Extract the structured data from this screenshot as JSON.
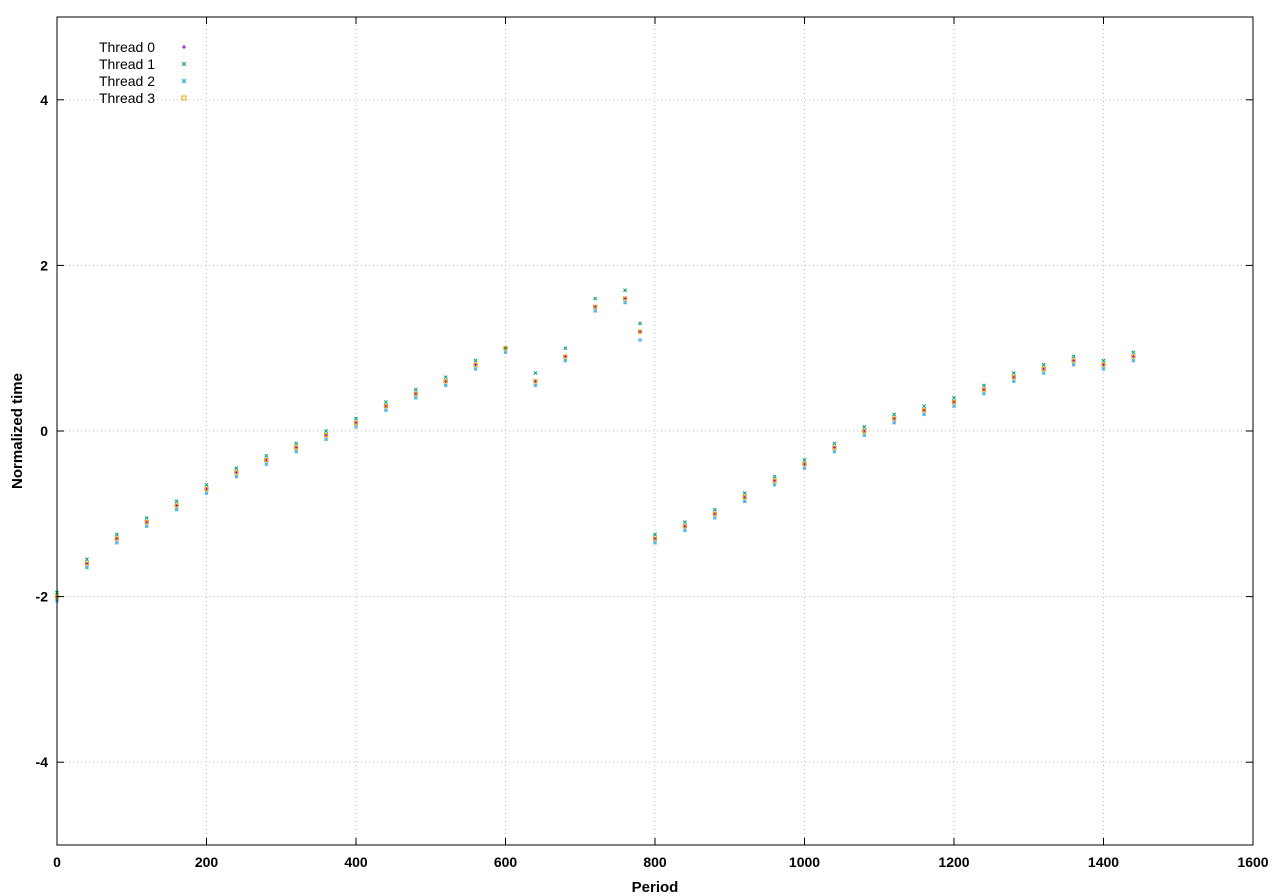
{
  "chart_data": {
    "type": "scatter",
    "title": "",
    "xlabel": "Period",
    "ylabel": "Normalized time",
    "xlim": [
      0,
      1600
    ],
    "ylim": [
      -5,
      5
    ],
    "xticks": [
      0,
      200,
      400,
      600,
      800,
      1000,
      1200,
      1400,
      1600
    ],
    "yticks": [
      -4,
      -2,
      0,
      2,
      4
    ],
    "xtick_labels": [
      "0",
      "200",
      "400",
      "600",
      "800",
      "1000",
      "1200",
      "1400",
      "1600"
    ],
    "ytick_labels": [
      "-4",
      "-2",
      "0",
      "2",
      "4"
    ],
    "grid": true,
    "legend_position": "top-left",
    "series": [
      {
        "name": "Thread 0",
        "color": "#9400d3",
        "marker": "plus",
        "x": [
          0,
          40,
          80,
          120,
          160,
          200,
          240,
          280,
          320,
          360,
          400,
          440,
          480,
          520,
          560,
          600,
          640,
          680,
          720,
          760,
          780,
          800,
          840,
          880,
          920,
          960,
          1000,
          1040,
          1080,
          1120,
          1160,
          1200,
          1240,
          1280,
          1320,
          1360,
          1400,
          1440
        ],
        "y": [
          -2.0,
          -1.6,
          -1.3,
          -1.1,
          -0.9,
          -0.7,
          -0.5,
          -0.35,
          -0.2,
          -0.05,
          0.1,
          0.3,
          0.45,
          0.6,
          0.8,
          1.0,
          0.6,
          0.9,
          1.5,
          1.6,
          1.2,
          -1.3,
          -1.15,
          -1.0,
          -0.8,
          -0.6,
          -0.4,
          -0.2,
          0.0,
          0.15,
          0.25,
          0.35,
          0.5,
          0.65,
          0.75,
          0.85,
          0.8,
          0.9
        ]
      },
      {
        "name": "Thread 1",
        "color": "#009e73",
        "marker": "cross",
        "x": [
          0,
          40,
          80,
          120,
          160,
          200,
          240,
          280,
          320,
          360,
          400,
          440,
          480,
          520,
          560,
          600,
          640,
          680,
          720,
          760,
          780,
          800,
          840,
          880,
          920,
          960,
          1000,
          1040,
          1080,
          1120,
          1160,
          1200,
          1240,
          1280,
          1320,
          1360,
          1400,
          1440
        ],
        "y": [
          -1.95,
          -1.55,
          -1.25,
          -1.05,
          -0.85,
          -0.65,
          -0.45,
          -0.3,
          -0.15,
          0.0,
          0.15,
          0.35,
          0.5,
          0.65,
          0.85,
          1.0,
          0.7,
          1.0,
          1.6,
          1.7,
          1.3,
          -1.25,
          -1.1,
          -0.95,
          -0.75,
          -0.55,
          -0.35,
          -0.15,
          0.05,
          0.2,
          0.3,
          0.4,
          0.55,
          0.7,
          0.8,
          0.9,
          0.85,
          0.95
        ]
      },
      {
        "name": "Thread 2",
        "color": "#56b4e9",
        "marker": "star",
        "x": [
          0,
          40,
          80,
          120,
          160,
          200,
          240,
          280,
          320,
          360,
          400,
          440,
          480,
          520,
          560,
          600,
          640,
          680,
          720,
          760,
          780,
          800,
          840,
          880,
          920,
          960,
          1000,
          1040,
          1080,
          1120,
          1160,
          1200,
          1240,
          1280,
          1320,
          1360,
          1400,
          1440
        ],
        "y": [
          -2.05,
          -1.65,
          -1.35,
          -1.15,
          -0.95,
          -0.75,
          -0.55,
          -0.4,
          -0.25,
          -0.1,
          0.05,
          0.25,
          0.4,
          0.55,
          0.75,
          0.95,
          0.55,
          0.85,
          1.45,
          1.55,
          1.1,
          -1.35,
          -1.2,
          -1.05,
          -0.85,
          -0.65,
          -0.45,
          -0.25,
          -0.05,
          0.1,
          0.2,
          0.3,
          0.45,
          0.6,
          0.7,
          0.8,
          0.75,
          0.85
        ]
      },
      {
        "name": "Thread 3",
        "color": "#e69f00",
        "marker": "square",
        "x": [
          0,
          40,
          80,
          120,
          160,
          200,
          240,
          280,
          320,
          360,
          400,
          440,
          480,
          520,
          560,
          600,
          640,
          680,
          720,
          760,
          780,
          800,
          840,
          880,
          920,
          960,
          1000,
          1040,
          1080,
          1120,
          1160,
          1200,
          1240,
          1280,
          1320,
          1360,
          1400,
          1440
        ],
        "y": [
          -2.0,
          -1.6,
          -1.3,
          -1.1,
          -0.9,
          -0.7,
          -0.5,
          -0.35,
          -0.2,
          -0.05,
          0.1,
          0.3,
          0.45,
          0.6,
          0.8,
          1.0,
          0.6,
          0.9,
          1.5,
          1.6,
          1.2,
          -1.3,
          -1.15,
          -1.0,
          -0.8,
          -0.6,
          -0.4,
          -0.2,
          0.0,
          0.15,
          0.25,
          0.35,
          0.5,
          0.65,
          0.75,
          0.85,
          0.8,
          0.9
        ]
      }
    ]
  }
}
